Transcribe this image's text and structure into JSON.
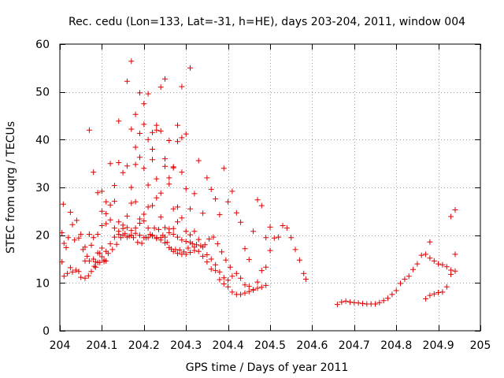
{
  "chart_data": {
    "type": "scatter",
    "title": "Rec. cedu (Lon=133, Lat=-31, h=HE), days 203-204, 2011, window 004",
    "xlabel": "GPS time / Days of year 2011",
    "ylabel": "STEC from uqrg / TECUs",
    "xlim": [
      204,
      205
    ],
    "ylim": [
      0,
      60
    ],
    "xticks": [
      204,
      204.1,
      204.2,
      204.3,
      204.4,
      204.5,
      204.6,
      204.7,
      204.8,
      204.9,
      205
    ],
    "xtick_labels": [
      "204",
      "204.1",
      "204.2",
      "204.3",
      "204.4",
      "204.5",
      "204.6",
      "204.7",
      "204.8",
      "204.9",
      "205"
    ],
    "yticks": [
      0,
      10,
      20,
      30,
      40,
      50,
      60
    ],
    "ytick_labels": [
      "0",
      "10",
      "20",
      "30",
      "40",
      "50",
      "60"
    ],
    "grid": true,
    "marker": "+",
    "marker_color": "#e00000",
    "series": [
      {
        "name": "STEC",
        "points": [
          [
            204.008,
            26.5
          ],
          [
            204.005,
            20.5
          ],
          [
            204.01,
            18.3
          ],
          [
            204.015,
            17.4
          ],
          [
            204.02,
            19.5
          ],
          [
            204.025,
            24.8
          ],
          [
            204.03,
            22.2
          ],
          [
            204.035,
            19.0
          ],
          [
            204.04,
            23.1
          ],
          [
            204.045,
            19.4
          ],
          [
            204.05,
            20.2
          ],
          [
            204.055,
            17.0
          ],
          [
            204.06,
            17.5
          ],
          [
            204.065,
            15.6
          ],
          [
            204.07,
            20.2
          ],
          [
            204.075,
            17.9
          ],
          [
            204.08,
            15.0
          ],
          [
            204.085,
            13.3
          ],
          [
            204.09,
            16.3
          ],
          [
            204.095,
            16.2
          ],
          [
            204.1,
            17.3
          ],
          [
            204.105,
            14.5
          ],
          [
            204.11,
            14.6
          ],
          [
            204.005,
            14.4
          ],
          [
            204.01,
            11.4
          ],
          [
            204.018,
            12.0
          ],
          [
            204.025,
            13.2
          ],
          [
            204.03,
            12.3
          ],
          [
            204.038,
            12.7
          ],
          [
            204.045,
            12.4
          ],
          [
            204.05,
            11.2
          ],
          [
            204.06,
            11.0
          ],
          [
            204.068,
            11.5
          ],
          [
            204.075,
            12.4
          ],
          [
            204.082,
            13.5
          ],
          [
            204.09,
            14.3
          ],
          [
            204.1,
            15.5
          ],
          [
            204.11,
            16.6
          ],
          [
            204.12,
            18.2
          ],
          [
            204.13,
            19.6
          ],
          [
            204.14,
            20.8
          ],
          [
            204.15,
            21.4
          ],
          [
            204.16,
            21.6
          ],
          [
            204.17,
            21.0
          ],
          [
            204.18,
            20.4
          ],
          [
            204.19,
            20.0
          ],
          [
            204.2,
            19.5
          ],
          [
            204.21,
            19.5
          ],
          [
            204.22,
            19.8
          ],
          [
            204.23,
            19.5
          ],
          [
            204.24,
            19.0
          ],
          [
            204.25,
            18.4
          ],
          [
            204.26,
            17.4
          ],
          [
            204.27,
            16.6
          ],
          [
            204.28,
            16.2
          ],
          [
            204.29,
            16.0
          ],
          [
            204.3,
            16.0
          ],
          [
            204.31,
            16.4
          ],
          [
            204.32,
            16.8
          ],
          [
            204.06,
            14.6
          ],
          [
            204.07,
            14.6
          ],
          [
            204.085,
            14.4
          ],
          [
            204.095,
            14.3
          ],
          [
            204.105,
            14.8
          ],
          [
            204.115,
            16.2
          ],
          [
            204.125,
            17.0
          ],
          [
            204.135,
            18.1
          ],
          [
            204.145,
            19.5
          ],
          [
            204.155,
            20.3
          ],
          [
            204.165,
            19.8
          ],
          [
            204.175,
            19.5
          ],
          [
            204.185,
            18.5
          ],
          [
            204.195,
            18.3
          ],
          [
            204.205,
            19.5
          ],
          [
            204.215,
            20.2
          ],
          [
            204.225,
            21.5
          ],
          [
            204.235,
            21.2
          ],
          [
            204.245,
            20.0
          ],
          [
            204.255,
            18.5
          ],
          [
            204.265,
            17.1
          ],
          [
            204.275,
            17.0
          ],
          [
            204.285,
            16.9
          ],
          [
            204.295,
            16.5
          ],
          [
            204.305,
            17.3
          ],
          [
            204.315,
            18.2
          ],
          [
            204.325,
            18.0
          ],
          [
            204.335,
            17.8
          ],
          [
            204.345,
            18.0
          ],
          [
            204.355,
            19.2
          ],
          [
            204.365,
            19.6
          ],
          [
            204.375,
            18.2
          ],
          [
            204.385,
            16.5
          ],
          [
            204.395,
            14.8
          ],
          [
            204.405,
            13.3
          ],
          [
            204.08,
            19.5
          ],
          [
            204.09,
            20.2
          ],
          [
            204.1,
            22.0
          ],
          [
            204.11,
            22.4
          ],
          [
            204.12,
            23.2
          ],
          [
            204.13,
            21.5
          ],
          [
            204.14,
            20.2
          ],
          [
            204.15,
            20.0
          ],
          [
            204.16,
            19.6
          ],
          [
            204.17,
            20.0
          ],
          [
            204.18,
            21.5
          ],
          [
            204.19,
            22.5
          ],
          [
            204.2,
            23.0
          ],
          [
            204.21,
            21.5
          ],
          [
            204.22,
            20.0
          ],
          [
            204.23,
            19.3
          ],
          [
            204.24,
            19.5
          ],
          [
            204.25,
            19.6
          ],
          [
            204.26,
            21.3
          ],
          [
            204.27,
            20.2
          ],
          [
            204.28,
            19.6
          ],
          [
            204.29,
            19.0
          ],
          [
            204.3,
            18.7
          ],
          [
            204.31,
            18.5
          ],
          [
            204.32,
            17.5
          ],
          [
            204.33,
            16.6
          ],
          [
            204.34,
            15.6
          ],
          [
            204.35,
            14.4
          ],
          [
            204.36,
            12.9
          ],
          [
            204.37,
            12.6
          ],
          [
            204.38,
            10.7
          ],
          [
            204.39,
            9.8
          ],
          [
            204.4,
            9.2
          ],
          [
            204.41,
            8.1
          ],
          [
            204.42,
            7.6
          ],
          [
            204.43,
            7.6
          ],
          [
            204.44,
            7.9
          ],
          [
            204.45,
            8.2
          ],
          [
            204.46,
            8.6
          ],
          [
            204.47,
            8.9
          ],
          [
            204.48,
            9.1
          ],
          [
            204.49,
            9.5
          ],
          [
            204.1,
            25.0
          ],
          [
            204.11,
            24.5
          ],
          [
            204.12,
            26.3
          ],
          [
            204.13,
            27.1
          ],
          [
            204.14,
            22.8
          ],
          [
            204.15,
            22.1
          ],
          [
            204.16,
            24.0
          ],
          [
            204.17,
            26.7
          ],
          [
            204.18,
            27.0
          ],
          [
            204.19,
            23.4
          ],
          [
            204.2,
            24.4
          ],
          [
            204.21,
            25.9
          ],
          [
            204.22,
            26.2
          ],
          [
            204.23,
            27.8
          ],
          [
            204.24,
            23.8
          ],
          [
            204.25,
            21.6
          ],
          [
            204.26,
            20.5
          ],
          [
            204.27,
            21.4
          ],
          [
            204.28,
            22.8
          ],
          [
            204.29,
            23.6
          ],
          [
            204.3,
            20.8
          ],
          [
            204.31,
            20.1
          ],
          [
            204.32,
            20.8
          ],
          [
            204.33,
            19.1
          ],
          [
            204.34,
            17.5
          ],
          [
            204.35,
            15.9
          ],
          [
            204.36,
            15.0
          ],
          [
            204.37,
            13.8
          ],
          [
            204.38,
            12.3
          ],
          [
            204.39,
            11.1
          ],
          [
            204.4,
            10.6
          ],
          [
            204.41,
            11.4
          ],
          [
            204.42,
            12.0
          ],
          [
            204.43,
            11.0
          ],
          [
            204.44,
            9.6
          ],
          [
            204.45,
            9.3
          ],
          [
            204.46,
            8.5
          ],
          [
            204.47,
            10.2
          ],
          [
            204.48,
            12.6
          ],
          [
            204.49,
            13.3
          ],
          [
            204.5,
            16.8
          ],
          [
            204.51,
            19.4
          ],
          [
            204.52,
            19.6
          ],
          [
            204.53,
            22.0
          ],
          [
            204.54,
            21.5
          ],
          [
            204.55,
            19.5
          ],
          [
            204.56,
            17.0
          ],
          [
            204.57,
            14.8
          ],
          [
            204.58,
            12.0
          ],
          [
            204.585,
            10.8
          ],
          [
            204.08,
            33.2
          ],
          [
            204.09,
            28.9
          ],
          [
            204.1,
            29.2
          ],
          [
            204.11,
            27.0
          ],
          [
            204.12,
            35.0
          ],
          [
            204.13,
            30.4
          ],
          [
            204.14,
            35.2
          ],
          [
            204.15,
            33.1
          ],
          [
            204.16,
            34.5
          ],
          [
            204.17,
            30.0
          ],
          [
            204.18,
            34.8
          ],
          [
            204.19,
            36.3
          ],
          [
            204.2,
            34.0
          ],
          [
            204.21,
            30.5
          ],
          [
            204.22,
            35.8
          ],
          [
            204.23,
            31.8
          ],
          [
            204.24,
            28.8
          ],
          [
            204.25,
            34.4
          ],
          [
            204.26,
            30.7
          ],
          [
            204.27,
            25.5
          ],
          [
            204.28,
            25.9
          ],
          [
            204.29,
            33.2
          ],
          [
            204.3,
            29.7
          ],
          [
            204.31,
            25.5
          ],
          [
            204.32,
            28.7
          ],
          [
            204.33,
            35.6
          ],
          [
            204.34,
            24.6
          ],
          [
            204.35,
            32.0
          ],
          [
            204.36,
            29.6
          ],
          [
            204.37,
            27.6
          ],
          [
            204.38,
            24.3
          ],
          [
            204.39,
            34.0
          ],
          [
            204.4,
            27.0
          ],
          [
            204.41,
            29.2
          ],
          [
            204.42,
            24.7
          ],
          [
            204.43,
            22.7
          ],
          [
            204.44,
            17.2
          ],
          [
            204.45,
            14.9
          ],
          [
            204.46,
            20.8
          ],
          [
            204.47,
            27.4
          ],
          [
            204.48,
            26.2
          ],
          [
            204.49,
            19.5
          ],
          [
            204.5,
            21.7
          ],
          [
            204.07,
            42.0
          ],
          [
            204.14,
            43.9
          ],
          [
            204.16,
            52.2
          ],
          [
            204.17,
            56.4
          ],
          [
            204.18,
            45.3
          ],
          [
            204.19,
            49.8
          ],
          [
            204.2,
            43.2
          ],
          [
            204.21,
            49.6
          ],
          [
            204.22,
            41.5
          ],
          [
            204.23,
            43.0
          ],
          [
            204.24,
            51.0
          ],
          [
            204.25,
            52.7
          ],
          [
            204.26,
            39.8
          ],
          [
            204.27,
            34.3
          ],
          [
            204.28,
            43.0
          ],
          [
            204.29,
            51.1
          ],
          [
            204.3,
            41.2
          ],
          [
            204.31,
            55.0
          ],
          [
            204.17,
            42.2
          ],
          [
            204.18,
            38.4
          ],
          [
            204.19,
            41.3
          ],
          [
            204.2,
            47.5
          ],
          [
            204.21,
            40.0
          ],
          [
            204.22,
            38.0
          ],
          [
            204.23,
            42.0
          ],
          [
            204.24,
            41.8
          ],
          [
            204.25,
            36.0
          ],
          [
            204.26,
            32.0
          ],
          [
            204.27,
            34.1
          ],
          [
            204.28,
            39.6
          ],
          [
            204.29,
            40.4
          ],
          [
            204.66,
            5.5
          ],
          [
            204.67,
            6.0
          ],
          [
            204.68,
            6.2
          ],
          [
            204.69,
            6.0
          ],
          [
            204.7,
            5.9
          ],
          [
            204.71,
            5.8
          ],
          [
            204.72,
            5.7
          ],
          [
            204.73,
            5.6
          ],
          [
            204.74,
            5.6
          ],
          [
            204.75,
            5.6
          ],
          [
            204.76,
            5.9
          ],
          [
            204.77,
            6.3
          ],
          [
            204.78,
            6.8
          ],
          [
            204.79,
            7.6
          ],
          [
            204.8,
            8.4
          ],
          [
            204.81,
            9.9
          ],
          [
            204.82,
            10.8
          ],
          [
            204.83,
            11.4
          ],
          [
            204.84,
            12.8
          ],
          [
            204.85,
            14.0
          ],
          [
            204.86,
            15.8
          ],
          [
            204.87,
            16.0
          ],
          [
            204.88,
            15.2
          ],
          [
            204.89,
            14.6
          ],
          [
            204.9,
            14.0
          ],
          [
            204.91,
            13.8
          ],
          [
            204.92,
            13.4
          ],
          [
            204.93,
            12.7
          ],
          [
            204.94,
            12.5
          ],
          [
            204.87,
            6.7
          ],
          [
            204.88,
            7.4
          ],
          [
            204.89,
            7.7
          ],
          [
            204.9,
            8.0
          ],
          [
            204.91,
            8.1
          ],
          [
            204.92,
            9.2
          ],
          [
            204.93,
            11.8
          ],
          [
            204.94,
            16.0
          ],
          [
            204.88,
            18.6
          ],
          [
            204.93,
            23.9
          ],
          [
            204.94,
            25.3
          ]
        ]
      }
    ]
  }
}
